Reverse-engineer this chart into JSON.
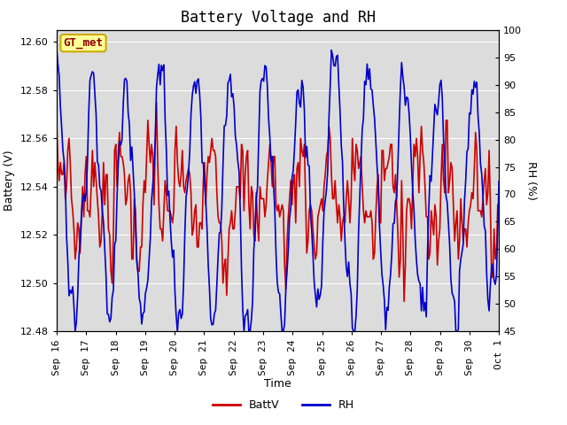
{
  "title": "Battery Voltage and RH",
  "xlabel": "Time",
  "ylabel_left": "Battery (V)",
  "ylabel_right": "RH (%)",
  "annotation": "GT_met",
  "ylim_left": [
    12.48,
    12.605
  ],
  "ylim_right": [
    45,
    100
  ],
  "yticks_left": [
    12.48,
    12.5,
    12.52,
    12.54,
    12.56,
    12.58,
    12.6
  ],
  "yticks_right": [
    45,
    50,
    55,
    60,
    65,
    70,
    75,
    80,
    85,
    90,
    95,
    100
  ],
  "xtick_labels": [
    "Sep 16",
    "Sep 17",
    "Sep 18",
    "Sep 19",
    "Sep 20",
    "Sep 21",
    "Sep 22",
    "Sep 23",
    "Sep 24",
    "Sep 25",
    "Sep 26",
    "Sep 27",
    "Sep 28",
    "Sep 29",
    "Sep 30",
    "Oct 1"
  ],
  "color_batt": "#cc0000",
  "color_rh": "#0000cc",
  "legend_labels": [
    "BattV",
    "RH"
  ],
  "background_color": "#dcdcdc",
  "title_fontsize": 12,
  "axis_label_fontsize": 9,
  "tick_fontsize": 8,
  "annotation_fontsize": 9,
  "annotation_bg": "#ffff99",
  "annotation_border": "#ccaa00",
  "linewidth_batt": 1.2,
  "linewidth_rh": 1.2
}
